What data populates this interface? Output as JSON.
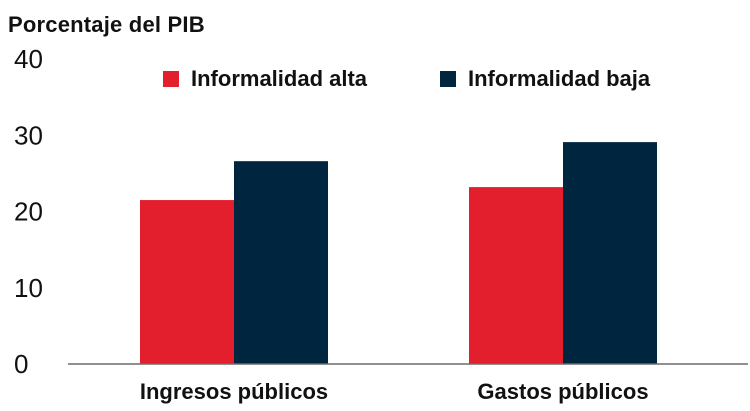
{
  "chart_data": {
    "type": "bar",
    "ylabel": "Porcentaje del PIB",
    "ylim": [
      0,
      40
    ],
    "yticks": [
      0,
      10,
      20,
      30,
      40
    ],
    "categories": [
      "Ingresos públicos",
      "Gastos públicos"
    ],
    "series": [
      {
        "name": "Informalidad alta",
        "color": "#e31e2d",
        "values": [
          21.5,
          23.2
        ]
      },
      {
        "name": "Informalidad baja",
        "color": "#00253f",
        "values": [
          26.6,
          29.1
        ]
      }
    ],
    "grid": false,
    "legend_position": "top"
  }
}
